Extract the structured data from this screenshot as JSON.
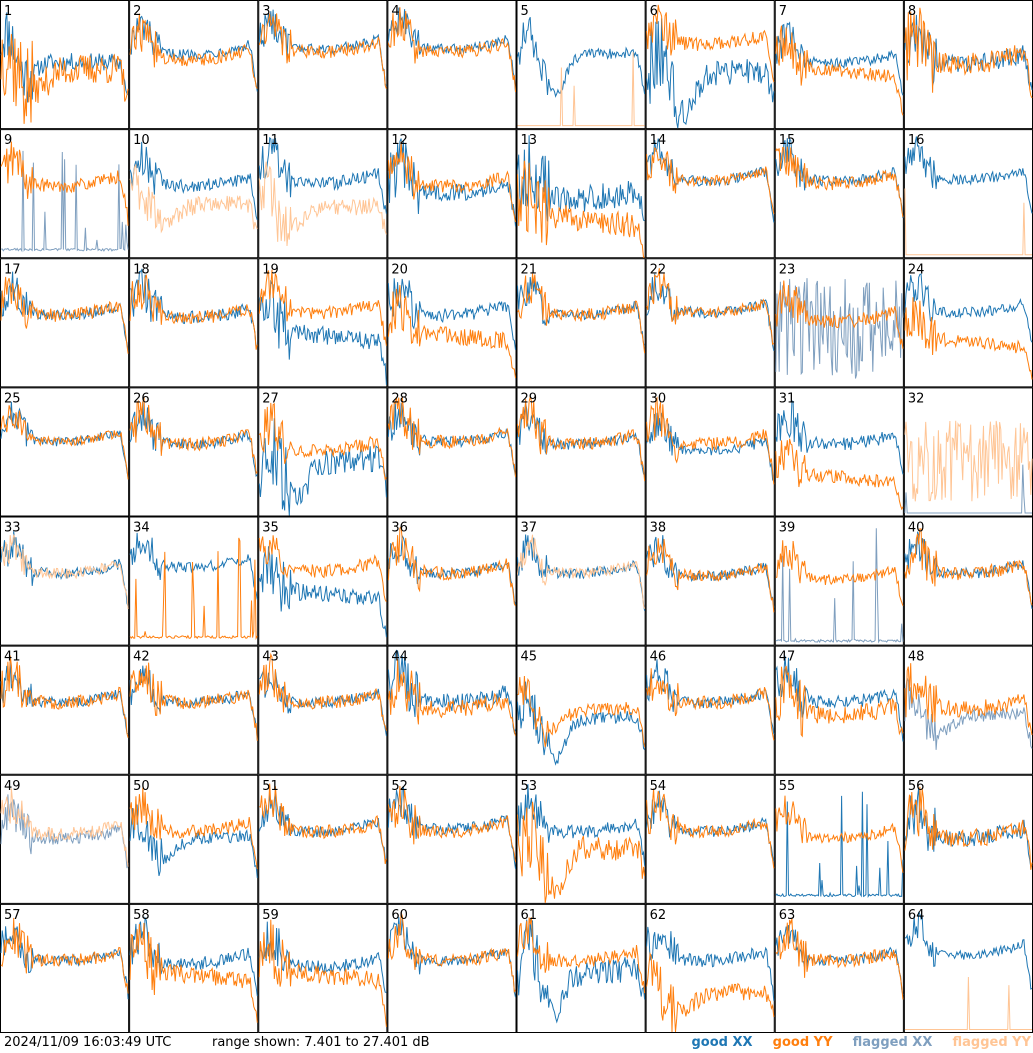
{
  "timestamp": "2024/11/09 16:03:49 UTC",
  "range_text": "range shown: 7.401 to 27.401 dB",
  "legend": [
    {
      "label": "good XX",
      "color": "#1f77b4"
    },
    {
      "label": "good YY",
      "color": "#ff7f0e"
    },
    {
      "label": "flagged XX",
      "color": "#7f9fbf"
    },
    {
      "label": "flagged YY",
      "color": "#ffc595"
    }
  ],
  "chart_data": {
    "type": "line",
    "title": "",
    "ylim": [
      7.401,
      27.401
    ],
    "grid": {
      "rows": 8,
      "cols": 8
    },
    "panels": [
      {
        "label": "1",
        "xx": "good",
        "yy": "good",
        "xx_level": 0.52,
        "yy_level": 0.45,
        "xx_shape": "rise",
        "yy_shape": "dip",
        "xx_noise": 0.2,
        "yy_noise": 0.35
      },
      {
        "label": "2",
        "xx": "good",
        "yy": "good",
        "xx_level": 0.62,
        "yy_level": 0.58,
        "xx_shape": "bowl",
        "yy_shape": "bowl",
        "xx_noise": 0.12,
        "yy_noise": 0.15
      },
      {
        "label": "3",
        "xx": "good",
        "yy": "good",
        "xx_level": 0.66,
        "yy_level": 0.64,
        "xx_shape": "bowl",
        "yy_shape": "bowl",
        "xx_noise": 0.12,
        "yy_noise": 0.15
      },
      {
        "label": "4",
        "xx": "good",
        "yy": "good",
        "xx_level": 0.66,
        "yy_level": 0.64,
        "xx_shape": "bowl",
        "yy_shape": "bowl",
        "xx_noise": 0.12,
        "yy_noise": 0.15
      },
      {
        "label": "5",
        "xx": "good",
        "yy": "flagged",
        "xx_level": 0.55,
        "yy_level": 0.02,
        "xx_shape": "deepdip",
        "yy_shape": "flat",
        "xx_noise": 0.12,
        "yy_noise": 0.02
      },
      {
        "label": "6",
        "xx": "good",
        "yy": "good",
        "xx_level": 0.4,
        "yy_level": 0.7,
        "xx_shape": "deepdip",
        "yy_shape": "bowl",
        "xx_noise": 0.3,
        "yy_noise": 0.15
      },
      {
        "label": "7",
        "xx": "good",
        "yy": "good",
        "xx_level": 0.55,
        "yy_level": 0.5,
        "xx_shape": "bowl",
        "yy_shape": "slope",
        "xx_noise": 0.12,
        "yy_noise": 0.15
      },
      {
        "label": "8",
        "xx": "good",
        "yy": "good",
        "xx_level": 0.55,
        "yy_level": 0.55,
        "xx_shape": "bowl",
        "yy_shape": "bowl",
        "xx_noise": 0.2,
        "yy_noise": 0.25
      },
      {
        "label": "9",
        "xx": "flagged",
        "yy": "good",
        "xx_level": 0.05,
        "yy_level": 0.6,
        "xx_shape": "spikes",
        "yy_shape": "bowl",
        "xx_noise": 0.3,
        "yy_noise": 0.15
      },
      {
        "label": "10",
        "xx": "good",
        "yy": "flagged",
        "xx_level": 0.6,
        "yy_level": 0.4,
        "xx_shape": "bowl",
        "yy_shape": "dip",
        "xx_noise": 0.15,
        "yy_noise": 0.2
      },
      {
        "label": "11",
        "xx": "good",
        "yy": "flagged",
        "xx_level": 0.62,
        "yy_level": 0.38,
        "xx_shape": "bowl",
        "yy_shape": "dip",
        "xx_noise": 0.15,
        "yy_noise": 0.2
      },
      {
        "label": "12",
        "xx": "good",
        "yy": "good",
        "xx_level": 0.55,
        "yy_level": 0.6,
        "xx_shape": "bowl",
        "yy_shape": "bowl",
        "xx_noise": 0.2,
        "yy_noise": 0.15
      },
      {
        "label": "13",
        "xx": "good",
        "yy": "good",
        "xx_level": 0.5,
        "yy_level": 0.35,
        "xx_shape": "bowl",
        "yy_shape": "slope",
        "xx_noise": 0.3,
        "yy_noise": 0.3
      },
      {
        "label": "14",
        "xx": "good",
        "yy": "good",
        "xx_level": 0.64,
        "yy_level": 0.64,
        "xx_shape": "bowl",
        "yy_shape": "bowl",
        "xx_noise": 0.12,
        "yy_noise": 0.12
      },
      {
        "label": "15",
        "xx": "good",
        "yy": "good",
        "xx_level": 0.64,
        "yy_level": 0.62,
        "xx_shape": "bowl",
        "yy_shape": "bowl",
        "xx_noise": 0.12,
        "yy_noise": 0.15
      },
      {
        "label": "16",
        "xx": "good",
        "yy": "flagged",
        "xx_level": 0.65,
        "yy_level": 0.02,
        "xx_shape": "bowl",
        "yy_shape": "flat",
        "xx_noise": 0.12,
        "yy_noise": 0.02
      },
      {
        "label": "17",
        "xx": "good",
        "yy": "good",
        "xx_level": 0.6,
        "yy_level": 0.6,
        "xx_shape": "bowl",
        "yy_shape": "bowl",
        "xx_noise": 0.12,
        "yy_noise": 0.15
      },
      {
        "label": "18",
        "xx": "good",
        "yy": "good",
        "xx_level": 0.58,
        "yy_level": 0.58,
        "xx_shape": "bowl",
        "yy_shape": "bowl",
        "xx_noise": 0.15,
        "yy_noise": 0.15
      },
      {
        "label": "19",
        "xx": "good",
        "yy": "good",
        "xx_level": 0.45,
        "yy_level": 0.62,
        "xx_shape": "slope",
        "yy_shape": "bowl",
        "xx_noise": 0.2,
        "yy_noise": 0.15
      },
      {
        "label": "20",
        "xx": "good",
        "yy": "good",
        "xx_level": 0.6,
        "yy_level": 0.45,
        "xx_shape": "bowl",
        "yy_shape": "slope",
        "xx_noise": 0.15,
        "yy_noise": 0.2
      },
      {
        "label": "21",
        "xx": "good",
        "yy": "good",
        "xx_level": 0.6,
        "yy_level": 0.6,
        "xx_shape": "bowl",
        "yy_shape": "bowl",
        "xx_noise": 0.12,
        "yy_noise": 0.15
      },
      {
        "label": "22",
        "xx": "good",
        "yy": "good",
        "xx_level": 0.62,
        "yy_level": 0.62,
        "xx_shape": "bowl",
        "yy_shape": "bowl",
        "xx_noise": 0.12,
        "yy_noise": 0.12
      },
      {
        "label": "23",
        "xx": "flagged",
        "yy": "good",
        "xx_level": 0.3,
        "yy_level": 0.55,
        "xx_shape": "noise",
        "yy_shape": "bowl",
        "xx_noise": 0.5,
        "yy_noise": 0.15
      },
      {
        "label": "24",
        "xx": "good",
        "yy": "good",
        "xx_level": 0.62,
        "yy_level": 0.4,
        "xx_shape": "bowl",
        "yy_shape": "slope",
        "xx_noise": 0.12,
        "yy_noise": 0.15
      },
      {
        "label": "25",
        "xx": "good",
        "yy": "good",
        "xx_level": 0.62,
        "yy_level": 0.62,
        "xx_shape": "bowl",
        "yy_shape": "bowl",
        "xx_noise": 0.1,
        "yy_noise": 0.1
      },
      {
        "label": "26",
        "xx": "good",
        "yy": "good",
        "xx_level": 0.6,
        "yy_level": 0.6,
        "xx_shape": "bowl",
        "yy_shape": "bowl",
        "xx_noise": 0.12,
        "yy_noise": 0.15
      },
      {
        "label": "27",
        "xx": "good",
        "yy": "good",
        "xx_level": 0.4,
        "yy_level": 0.55,
        "xx_shape": "deepdip",
        "yy_shape": "bowl",
        "xx_noise": 0.3,
        "yy_noise": 0.15
      },
      {
        "label": "28",
        "xx": "good",
        "yy": "good",
        "xx_level": 0.62,
        "yy_level": 0.62,
        "xx_shape": "bowl",
        "yy_shape": "bowl",
        "xx_noise": 0.12,
        "yy_noise": 0.15
      },
      {
        "label": "29",
        "xx": "good",
        "yy": "good",
        "xx_level": 0.6,
        "yy_level": 0.6,
        "xx_shape": "bowl",
        "yy_shape": "bowl",
        "xx_noise": 0.12,
        "yy_noise": 0.15
      },
      {
        "label": "30",
        "xx": "good",
        "yy": "good",
        "xx_level": 0.55,
        "yy_level": 0.6,
        "xx_shape": "bowl",
        "yy_shape": "bowl",
        "xx_noise": 0.12,
        "yy_noise": 0.15
      },
      {
        "label": "31",
        "xx": "good",
        "yy": "good",
        "xx_level": 0.6,
        "yy_level": 0.35,
        "xx_shape": "bowl",
        "yy_shape": "slope",
        "xx_noise": 0.15,
        "yy_noise": 0.15
      },
      {
        "label": "32",
        "xx": "flagged",
        "yy": "flagged",
        "xx_level": 0.02,
        "yy_level": 0.3,
        "xx_shape": "flat",
        "yy_shape": "noise",
        "xx_noise": 0.02,
        "yy_noise": 0.4
      },
      {
        "label": "33",
        "xx": "good",
        "yy": "flagged",
        "xx_level": 0.6,
        "yy_level": 0.6,
        "xx_shape": "bowl",
        "yy_shape": "bowl",
        "xx_noise": 0.12,
        "yy_noise": 0.12
      },
      {
        "label": "34",
        "xx": "good",
        "yy": "good",
        "xx_level": 0.65,
        "yy_level": 0.05,
        "xx_shape": "bowl",
        "yy_shape": "spikes",
        "xx_noise": 0.12,
        "yy_noise": 0.4
      },
      {
        "label": "35",
        "xx": "good",
        "yy": "good",
        "xx_level": 0.45,
        "yy_level": 0.62,
        "xx_shape": "slope",
        "yy_shape": "bowl",
        "xx_noise": 0.2,
        "yy_noise": 0.15
      },
      {
        "label": "36",
        "xx": "good",
        "yy": "good",
        "xx_level": 0.6,
        "yy_level": 0.6,
        "xx_shape": "bowl",
        "yy_shape": "bowl",
        "xx_noise": 0.12,
        "yy_noise": 0.15
      },
      {
        "label": "37",
        "xx": "good",
        "yy": "flagged",
        "xx_level": 0.6,
        "yy_level": 0.6,
        "xx_shape": "bowl",
        "yy_shape": "bowl",
        "xx_noise": 0.12,
        "yy_noise": 0.12
      },
      {
        "label": "38",
        "xx": "good",
        "yy": "good",
        "xx_level": 0.58,
        "yy_level": 0.58,
        "xx_shape": "bowl",
        "yy_shape": "bowl",
        "xx_noise": 0.12,
        "yy_noise": 0.12
      },
      {
        "label": "39",
        "xx": "flagged",
        "yy": "good",
        "xx_level": 0.02,
        "yy_level": 0.55,
        "xx_shape": "spikes",
        "yy_shape": "bowl",
        "xx_noise": 0.2,
        "yy_noise": 0.12
      },
      {
        "label": "40",
        "xx": "good",
        "yy": "good",
        "xx_level": 0.6,
        "yy_level": 0.6,
        "xx_shape": "bowl",
        "yy_shape": "bowl",
        "xx_noise": 0.12,
        "yy_noise": 0.15
      },
      {
        "label": "41",
        "xx": "good",
        "yy": "good",
        "xx_level": 0.6,
        "yy_level": 0.6,
        "xx_shape": "bowl",
        "yy_shape": "bowl",
        "xx_noise": 0.12,
        "yy_noise": 0.15
      },
      {
        "label": "42",
        "xx": "good",
        "yy": "good",
        "xx_level": 0.6,
        "yy_level": 0.6,
        "xx_shape": "bowl",
        "yy_shape": "bowl",
        "xx_noise": 0.12,
        "yy_noise": 0.15
      },
      {
        "label": "43",
        "xx": "good",
        "yy": "good",
        "xx_level": 0.6,
        "yy_level": 0.6,
        "xx_shape": "bowl",
        "yy_shape": "bowl",
        "xx_noise": 0.12,
        "yy_noise": 0.15
      },
      {
        "label": "44",
        "xx": "good",
        "yy": "good",
        "xx_level": 0.6,
        "yy_level": 0.55,
        "xx_shape": "bowl",
        "yy_shape": "bowl",
        "xx_noise": 0.2,
        "yy_noise": 0.2
      },
      {
        "label": "45",
        "xx": "good",
        "yy": "good",
        "xx_level": 0.4,
        "yy_level": 0.5,
        "xx_shape": "deepdip",
        "yy_shape": "dip",
        "xx_noise": 0.15,
        "yy_noise": 0.15
      },
      {
        "label": "46",
        "xx": "good",
        "yy": "good",
        "xx_level": 0.6,
        "yy_level": 0.6,
        "xx_shape": "bowl",
        "yy_shape": "bowl",
        "xx_noise": 0.12,
        "yy_noise": 0.15
      },
      {
        "label": "47",
        "xx": "good",
        "yy": "good",
        "xx_level": 0.6,
        "yy_level": 0.5,
        "xx_shape": "bowl",
        "yy_shape": "bowl",
        "xx_noise": 0.15,
        "yy_noise": 0.2
      },
      {
        "label": "48",
        "xx": "flagged",
        "yy": "good",
        "xx_level": 0.45,
        "yy_level": 0.55,
        "xx_shape": "dip",
        "yy_shape": "bowl",
        "xx_noise": 0.15,
        "yy_noise": 0.2
      },
      {
        "label": "49",
        "xx": "flagged",
        "yy": "flagged",
        "xx_level": 0.55,
        "yy_level": 0.58,
        "xx_shape": "bowl",
        "yy_shape": "bowl",
        "xx_noise": 0.15,
        "yy_noise": 0.15
      },
      {
        "label": "50",
        "xx": "good",
        "yy": "good",
        "xx_level": 0.5,
        "yy_level": 0.6,
        "xx_shape": "dip",
        "yy_shape": "bowl",
        "xx_noise": 0.15,
        "yy_noise": 0.15
      },
      {
        "label": "51",
        "xx": "good",
        "yy": "good",
        "xx_level": 0.6,
        "yy_level": 0.6,
        "xx_shape": "bowl",
        "yy_shape": "bowl",
        "xx_noise": 0.12,
        "yy_noise": 0.15
      },
      {
        "label": "52",
        "xx": "good",
        "yy": "good",
        "xx_level": 0.62,
        "yy_level": 0.6,
        "xx_shape": "bowl",
        "yy_shape": "bowl",
        "xx_noise": 0.12,
        "yy_noise": 0.15
      },
      {
        "label": "53",
        "xx": "good",
        "yy": "good",
        "xx_level": 0.6,
        "yy_level": 0.4,
        "xx_shape": "bowl",
        "yy_shape": "deepdip",
        "xx_noise": 0.15,
        "yy_noise": 0.3
      },
      {
        "label": "54",
        "xx": "good",
        "yy": "good",
        "xx_level": 0.6,
        "yy_level": 0.6,
        "xx_shape": "bowl",
        "yy_shape": "bowl",
        "xx_noise": 0.12,
        "yy_noise": 0.15
      },
      {
        "label": "55",
        "xx": "good",
        "yy": "good",
        "xx_level": 0.05,
        "yy_level": 0.55,
        "xx_shape": "spikes",
        "yy_shape": "bowl",
        "xx_noise": 0.4,
        "yy_noise": 0.12
      },
      {
        "label": "56",
        "xx": "good",
        "yy": "good",
        "xx_level": 0.55,
        "yy_level": 0.55,
        "xx_shape": "bowl",
        "yy_shape": "bowl",
        "xx_noise": 0.2,
        "yy_noise": 0.2
      },
      {
        "label": "57",
        "xx": "good",
        "yy": "good",
        "xx_level": 0.6,
        "yy_level": 0.6,
        "xx_shape": "bowl",
        "yy_shape": "bowl",
        "xx_noise": 0.12,
        "yy_noise": 0.15
      },
      {
        "label": "58",
        "xx": "good",
        "yy": "good",
        "xx_level": 0.58,
        "yy_level": 0.5,
        "xx_shape": "bowl",
        "yy_shape": "slope",
        "xx_noise": 0.15,
        "yy_noise": 0.2
      },
      {
        "label": "59",
        "xx": "good",
        "yy": "good",
        "xx_level": 0.55,
        "yy_level": 0.5,
        "xx_shape": "bowl",
        "yy_shape": "slope",
        "xx_noise": 0.15,
        "yy_noise": 0.2
      },
      {
        "label": "60",
        "xx": "good",
        "yy": "good",
        "xx_level": 0.6,
        "yy_level": 0.6,
        "xx_shape": "bowl",
        "yy_shape": "bowl",
        "xx_noise": 0.12,
        "yy_noise": 0.15
      },
      {
        "label": "61",
        "xx": "good",
        "yy": "good",
        "xx_level": 0.45,
        "yy_level": 0.6,
        "xx_shape": "deepdip",
        "yy_shape": "bowl",
        "xx_noise": 0.3,
        "yy_noise": 0.15
      },
      {
        "label": "62",
        "xx": "good",
        "yy": "good",
        "xx_level": 0.6,
        "yy_level": 0.3,
        "xx_shape": "bowl",
        "yy_shape": "dip",
        "xx_noise": 0.15,
        "yy_noise": 0.2
      },
      {
        "label": "63",
        "xx": "good",
        "yy": "good",
        "xx_level": 0.6,
        "yy_level": 0.6,
        "xx_shape": "bowl",
        "yy_shape": "bowl",
        "xx_noise": 0.12,
        "yy_noise": 0.15
      },
      {
        "label": "64",
        "xx": "good",
        "yy": "flagged",
        "xx_level": 0.65,
        "yy_level": 0.02,
        "xx_shape": "bowl",
        "yy_shape": "flat",
        "xx_noise": 0.12,
        "yy_noise": 0.02
      }
    ]
  }
}
